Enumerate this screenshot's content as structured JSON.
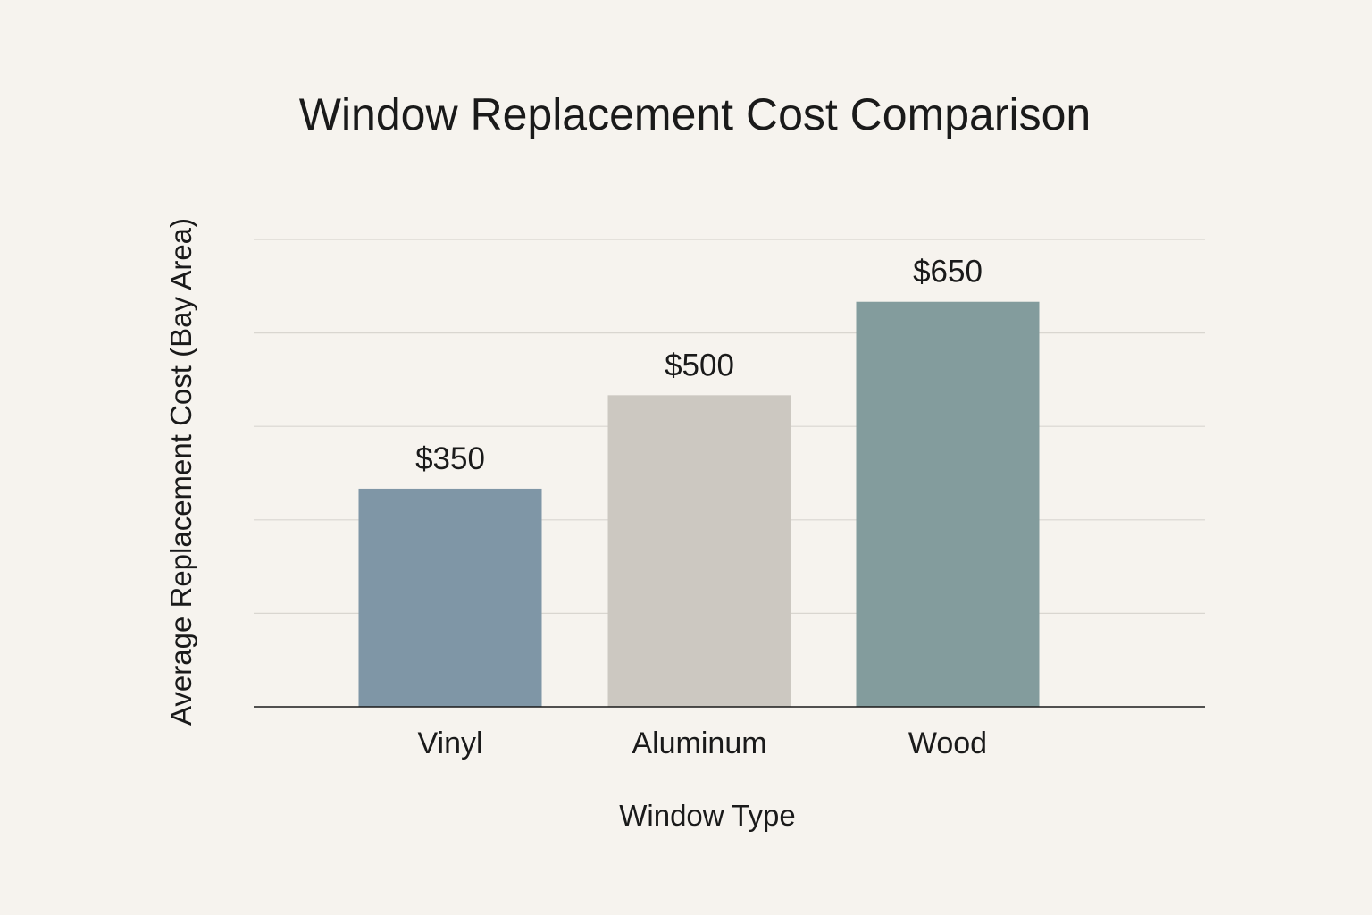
{
  "chart_data": {
    "type": "bar",
    "title": "Window Replacement Cost Comparison",
    "xlabel": "Window Type",
    "ylabel": "Average Replacement Cost (Bay Area)",
    "categories": [
      "Vinyl",
      "Aluminum",
      "Wood"
    ],
    "values": [
      350,
      500,
      650
    ],
    "data_labels": [
      "$350",
      "$500",
      "$650"
    ],
    "ylim": [
      0,
      750
    ],
    "grid": true,
    "legend": "none",
    "colors": [
      "#7f96a6",
      "#ccc8c1",
      "#839c9d"
    ]
  }
}
